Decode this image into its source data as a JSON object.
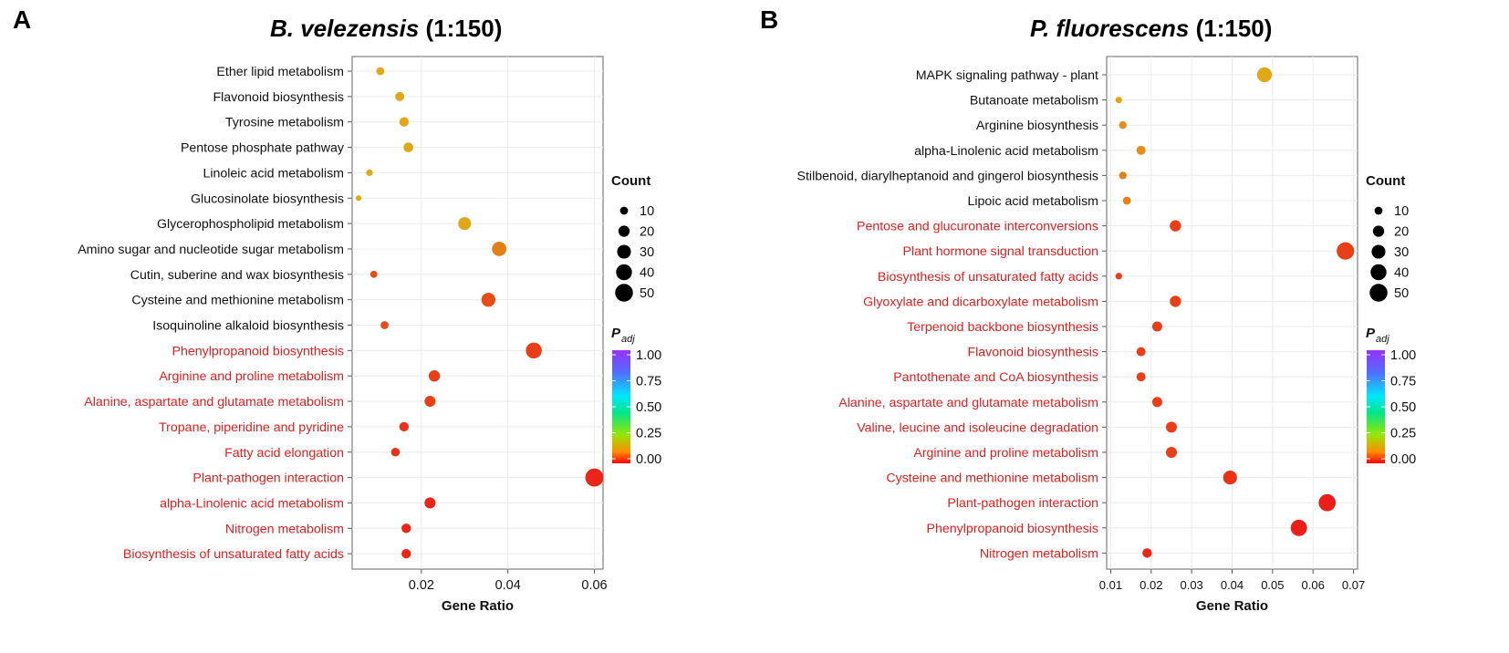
{
  "chart_data": [
    {
      "panel_letter": "A",
      "type": "scatter",
      "title_italic": "B. velezensis",
      "title_suffix": " (1:150)",
      "xlabel": "Gene Ratio",
      "ylabel": "",
      "xlim": [
        0.004,
        0.062
      ],
      "xticks": [
        0.02,
        0.04,
        0.06
      ],
      "xtick_labels": [
        "0.02",
        "0.04",
        "0.06"
      ],
      "count_legend_title": "Count",
      "count_legend": [
        10,
        20,
        30,
        40,
        50
      ],
      "color_legend_title": "P",
      "color_legend_subscript": "adj",
      "color_legend_ticks": [
        "1.00",
        "0.75",
        "0.50",
        "0.25",
        "0.00"
      ],
      "points": [
        {
          "term": "Ether lipid metabolism",
          "gene_ratio": 0.0105,
          "count": 10,
          "padj": 0.11,
          "highlight": false
        },
        {
          "term": "Flavonoid biosynthesis",
          "gene_ratio": 0.015,
          "count": 13,
          "padj": 0.11,
          "highlight": false
        },
        {
          "term": "Tyrosine metabolism",
          "gene_ratio": 0.016,
          "count": 14,
          "padj": 0.11,
          "highlight": false
        },
        {
          "term": "Pentose phosphate pathway",
          "gene_ratio": 0.017,
          "count": 15,
          "padj": 0.11,
          "highlight": false
        },
        {
          "term": "Linoleic acid metabolism",
          "gene_ratio": 0.008,
          "count": 7,
          "padj": 0.11,
          "highlight": false
        },
        {
          "term": "Glucosinolate biosynthesis",
          "gene_ratio": 0.0055,
          "count": 5,
          "padj": 0.11,
          "highlight": false
        },
        {
          "term": "Glycerophospholipid metabolism",
          "gene_ratio": 0.03,
          "count": 26,
          "padj": 0.11,
          "highlight": false
        },
        {
          "term": "Amino sugar and nucleotide sugar metabolism",
          "gene_ratio": 0.038,
          "count": 33,
          "padj": 0.08,
          "highlight": false
        },
        {
          "term": "Cutin, suberine and wax biosynthesis",
          "gene_ratio": 0.009,
          "count": 8,
          "padj": 0.04,
          "highlight": false
        },
        {
          "term": "Cysteine and methionine metabolism",
          "gene_ratio": 0.0355,
          "count": 31,
          "padj": 0.04,
          "highlight": false
        },
        {
          "term": "Isoquinoline alkaloid biosynthesis",
          "gene_ratio": 0.0115,
          "count": 10,
          "padj": 0.04,
          "highlight": false
        },
        {
          "term": "Phenylpropanoid biosynthesis",
          "gene_ratio": 0.046,
          "count": 40,
          "padj": 0.03,
          "highlight": true
        },
        {
          "term": "Arginine and proline metabolism",
          "gene_ratio": 0.023,
          "count": 20,
          "padj": 0.03,
          "highlight": true
        },
        {
          "term": "Alanine, aspartate and glutamate metabolism",
          "gene_ratio": 0.022,
          "count": 19,
          "padj": 0.03,
          "highlight": true
        },
        {
          "term": "Tropane, piperidine and pyridine",
          "gene_ratio": 0.016,
          "count": 14,
          "padj": 0.02,
          "highlight": true
        },
        {
          "term": "Fatty acid elongation",
          "gene_ratio": 0.014,
          "count": 12,
          "padj": 0.02,
          "highlight": true
        },
        {
          "term": "Plant-pathogen interaction",
          "gene_ratio": 0.06,
          "count": 52,
          "padj": 0.01,
          "highlight": true
        },
        {
          "term": "alpha-Linolenic acid metabolism",
          "gene_ratio": 0.022,
          "count": 19,
          "padj": 0.01,
          "highlight": true
        },
        {
          "term": "Nitrogen metabolism",
          "gene_ratio": 0.0165,
          "count": 14,
          "padj": 0.01,
          "highlight": true
        },
        {
          "term": "Biosynthesis of unsaturated fatty acids",
          "gene_ratio": 0.0165,
          "count": 14,
          "padj": 0.01,
          "highlight": true
        }
      ]
    },
    {
      "panel_letter": "B",
      "type": "scatter",
      "title_italic": "P. fluorescens",
      "title_suffix": " (1:150)",
      "xlabel": "Gene Ratio",
      "ylabel": "",
      "xlim": [
        0.009,
        0.071
      ],
      "xticks": [
        0.01,
        0.02,
        0.03,
        0.04,
        0.05,
        0.06,
        0.07
      ],
      "xtick_labels": [
        "0.01",
        "0.02",
        "0.03",
        "0.04",
        "0.05",
        "0.06",
        "0.07"
      ],
      "count_legend_title": "Count",
      "count_legend": [
        10,
        20,
        30,
        40,
        50
      ],
      "color_legend_title": "P",
      "color_legend_subscript": "adj",
      "color_legend_ticks": [
        "1.00",
        "0.75",
        "0.50",
        "0.25",
        "0.00"
      ],
      "points": [
        {
          "term": "MAPK signaling pathway - plant",
          "gene_ratio": 0.048,
          "count": 35,
          "padj": 0.11,
          "highlight": false
        },
        {
          "term": "Butanoate metabolism",
          "gene_ratio": 0.012,
          "count": 7,
          "padj": 0.11,
          "highlight": false
        },
        {
          "term": "Arginine biosynthesis",
          "gene_ratio": 0.013,
          "count": 9,
          "padj": 0.09,
          "highlight": false
        },
        {
          "term": "alpha-Linolenic acid metabolism",
          "gene_ratio": 0.0175,
          "count": 13,
          "padj": 0.09,
          "highlight": false
        },
        {
          "term": "Stilbenoid, diarylheptanoid and gingerol biosynthesis",
          "gene_ratio": 0.013,
          "count": 9,
          "padj": 0.08,
          "highlight": false
        },
        {
          "term": "Lipoic acid metabolism",
          "gene_ratio": 0.014,
          "count": 10,
          "padj": 0.08,
          "highlight": false
        },
        {
          "term": "Pentose and glucuronate interconversions",
          "gene_ratio": 0.026,
          "count": 20,
          "padj": 0.03,
          "highlight": true
        },
        {
          "term": "Plant hormone signal transduction",
          "gene_ratio": 0.068,
          "count": 48,
          "padj": 0.03,
          "highlight": true
        },
        {
          "term": "Biosynthesis of unsaturated fatty acids",
          "gene_ratio": 0.012,
          "count": 7,
          "padj": 0.03,
          "highlight": true
        },
        {
          "term": "Glyoxylate and dicarboxylate metabolism",
          "gene_ratio": 0.026,
          "count": 20,
          "padj": 0.03,
          "highlight": true
        },
        {
          "term": "Terpenoid backbone biosynthesis",
          "gene_ratio": 0.0215,
          "count": 16,
          "padj": 0.03,
          "highlight": true
        },
        {
          "term": "Flavonoid biosynthesis",
          "gene_ratio": 0.0175,
          "count": 13,
          "padj": 0.03,
          "highlight": true
        },
        {
          "term": "Pantothenate and CoA biosynthesis",
          "gene_ratio": 0.0175,
          "count": 13,
          "padj": 0.03,
          "highlight": true
        },
        {
          "term": "Alanine, aspartate and glutamate metabolism",
          "gene_ratio": 0.0215,
          "count": 16,
          "padj": 0.03,
          "highlight": true
        },
        {
          "term": "Valine, leucine and isoleucine degradation",
          "gene_ratio": 0.025,
          "count": 19,
          "padj": 0.03,
          "highlight": true
        },
        {
          "term": "Arginine and proline metabolism",
          "gene_ratio": 0.025,
          "count": 19,
          "padj": 0.03,
          "highlight": true
        },
        {
          "term": "Cysteine and methionine metabolism",
          "gene_ratio": 0.0395,
          "count": 30,
          "padj": 0.02,
          "highlight": true
        },
        {
          "term": "Plant-pathogen interaction",
          "gene_ratio": 0.0635,
          "count": 46,
          "padj": 0.005,
          "highlight": true
        },
        {
          "term": "Phenylpropanoid biosynthesis",
          "gene_ratio": 0.0565,
          "count": 42,
          "padj": 0.005,
          "highlight": true
        },
        {
          "term": "Nitrogen metabolism",
          "gene_ratio": 0.019,
          "count": 14,
          "padj": 0.01,
          "highlight": true
        }
      ]
    }
  ]
}
